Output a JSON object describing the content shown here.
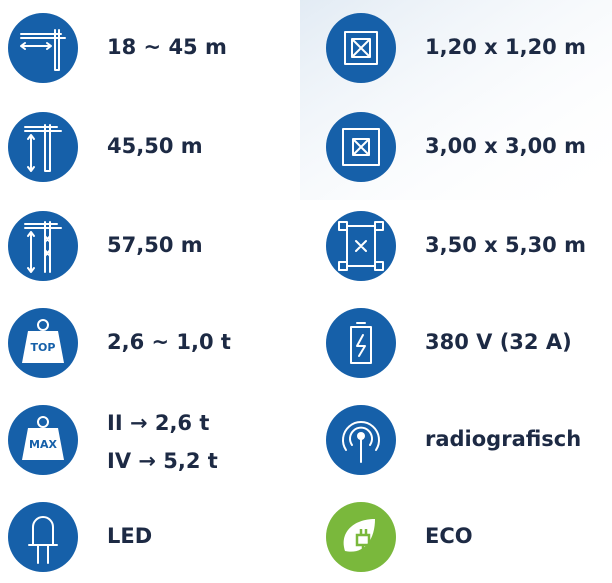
{
  "left": [
    {
      "text": "18 ~ 45 m"
    },
    {
      "text": "45,50 m"
    },
    {
      "text": "57,50 m"
    },
    {
      "icon_label": "TOP",
      "text": "2,6 ~ 1,0 t"
    },
    {
      "icon_label": "MAX",
      "lines": [
        "II → 2,6 t",
        "IV → 5,2 t"
      ]
    },
    {
      "text": "LED"
    }
  ],
  "right": [
    {
      "text": "1,20 x 1,20 m"
    },
    {
      "text": "3,00 x 3,00 m"
    },
    {
      "text": "3,50 x 5,30 m"
    },
    {
      "text": "380 V (32 A)"
    },
    {
      "text": "radiografisch"
    },
    {
      "text": "ECO"
    }
  ]
}
